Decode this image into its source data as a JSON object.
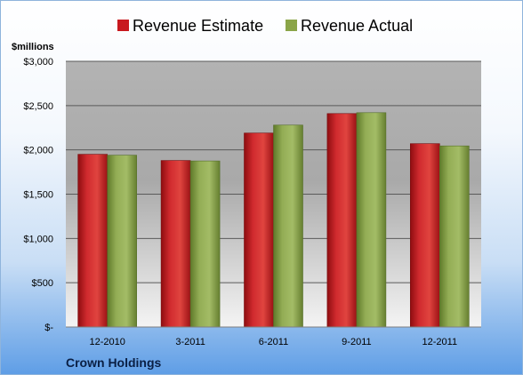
{
  "chart_data": {
    "type": "bar",
    "ylabel": "$millions",
    "footer": "Crown Holdings",
    "categories": [
      "12-2010",
      "3-2011",
      "6-2011",
      "9-2011",
      "12-2011"
    ],
    "series": [
      {
        "name": "Revenue Estimate",
        "color": "#c8191e",
        "values": [
          1950,
          1880,
          2190,
          2410,
          2070
        ]
      },
      {
        "name": "Revenue Actual",
        "color": "#8aa548",
        "values": [
          1940,
          1875,
          2280,
          2420,
          2045
        ]
      }
    ],
    "ylim": [
      0,
      3000
    ],
    "yticks": [
      0,
      500,
      1000,
      1500,
      2000,
      2500,
      3000
    ],
    "ytick_labels": [
      "$-",
      "$500",
      "$1,000",
      "$1,500",
      "$2,000",
      "$2,500",
      "$3,000"
    ],
    "grid": true,
    "legend_position": "top-center"
  }
}
